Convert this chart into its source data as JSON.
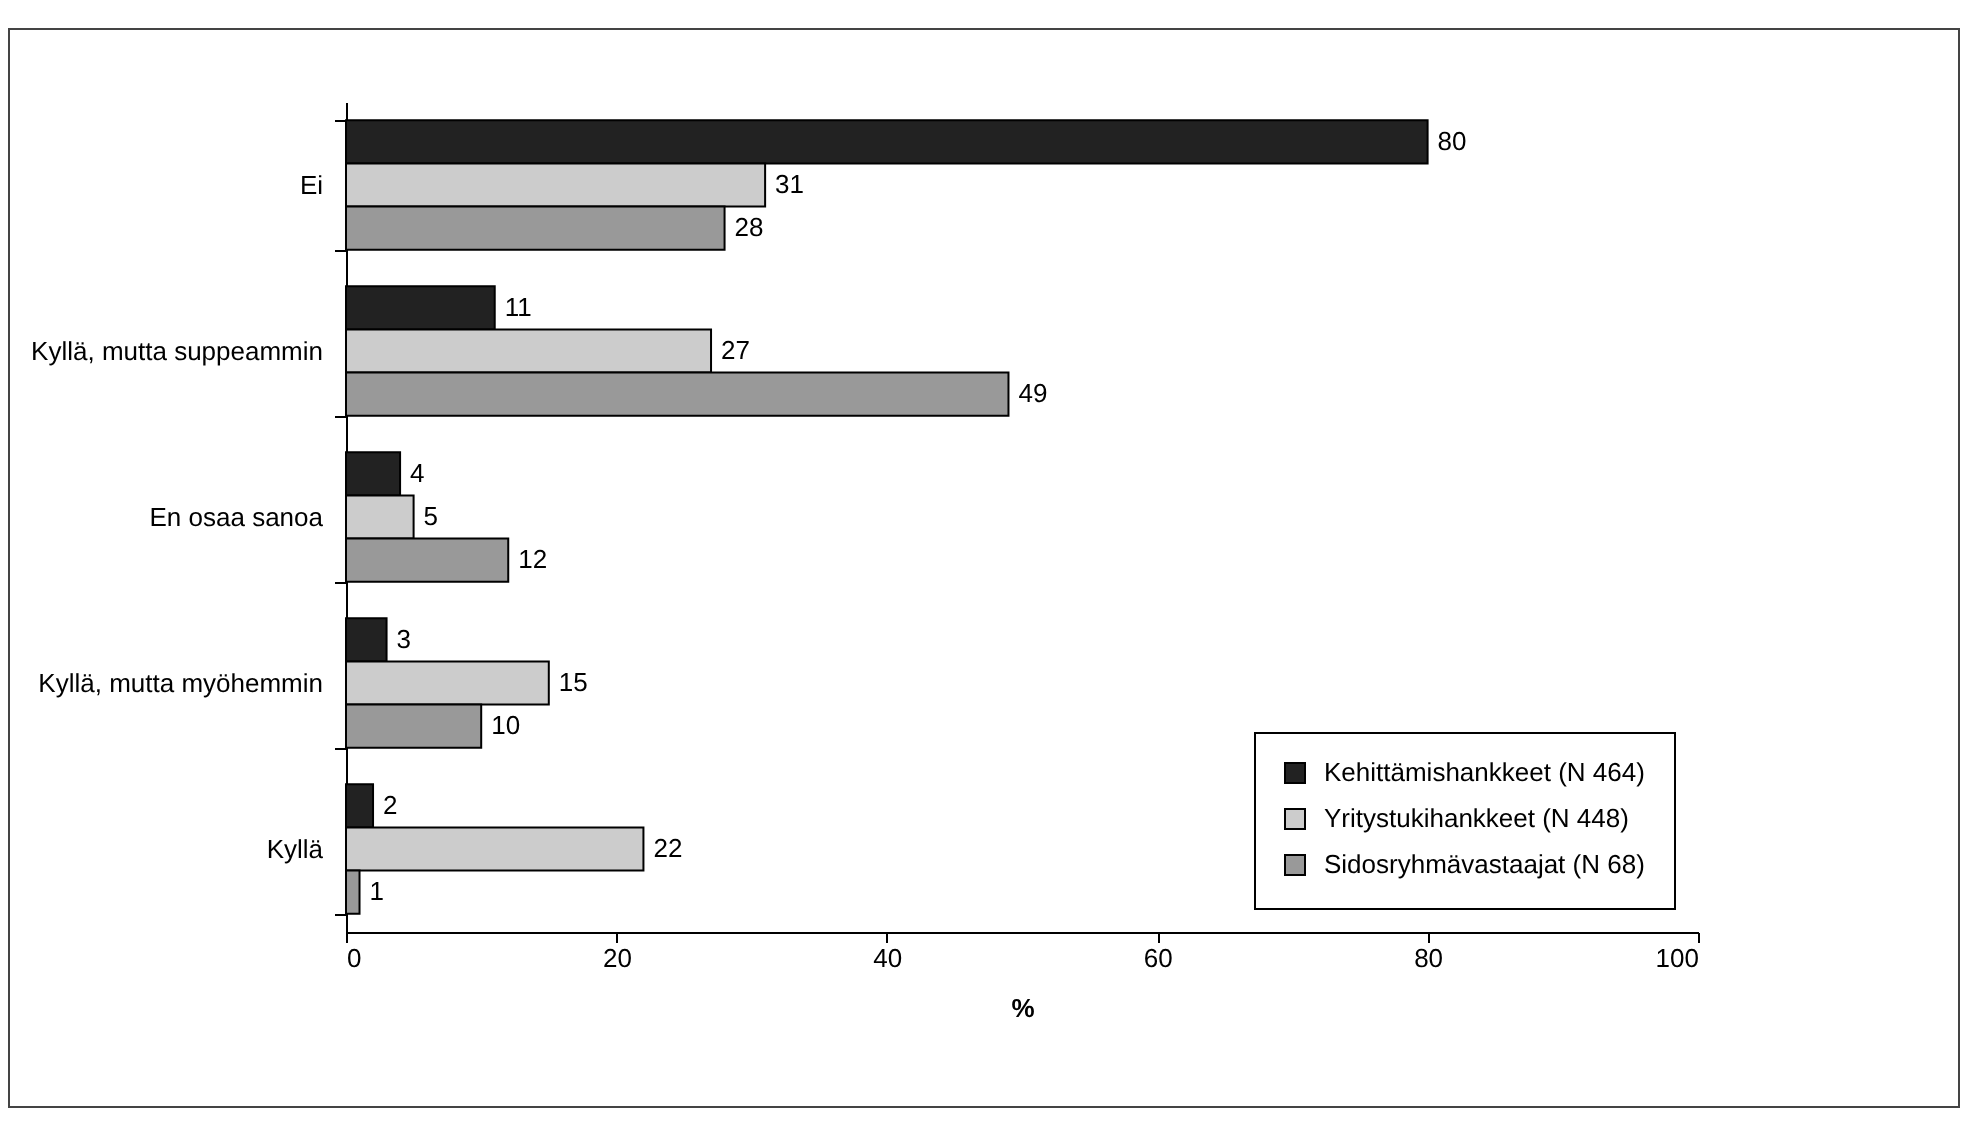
{
  "chart_data": {
    "type": "bar",
    "orientation": "horizontal",
    "xlabel": "%",
    "categories": [
      "Ei",
      "Kyllä, mutta suppeammin",
      "En osaa sanoa",
      "Kyllä, mutta myöhemmin",
      "Kyllä"
    ],
    "series": [
      {
        "name": "Kehittämishankkeet (N 464)",
        "color": "#222222",
        "values": [
          80,
          11,
          4,
          3,
          2
        ]
      },
      {
        "name": "Yritystukihankkeet (N 448)",
        "color": "#cccccc",
        "values": [
          31,
          27,
          5,
          15,
          22
        ]
      },
      {
        "name": "Sidosryhmävastaajat (N 68)",
        "color": "#999999",
        "values": [
          28,
          49,
          12,
          10,
          1
        ]
      }
    ],
    "xlim": [
      0,
      100
    ],
    "xticks": [
      0,
      20,
      40,
      60,
      80,
      100
    ],
    "grid": false,
    "legend": "bottom right",
    "data_labels": true
  }
}
